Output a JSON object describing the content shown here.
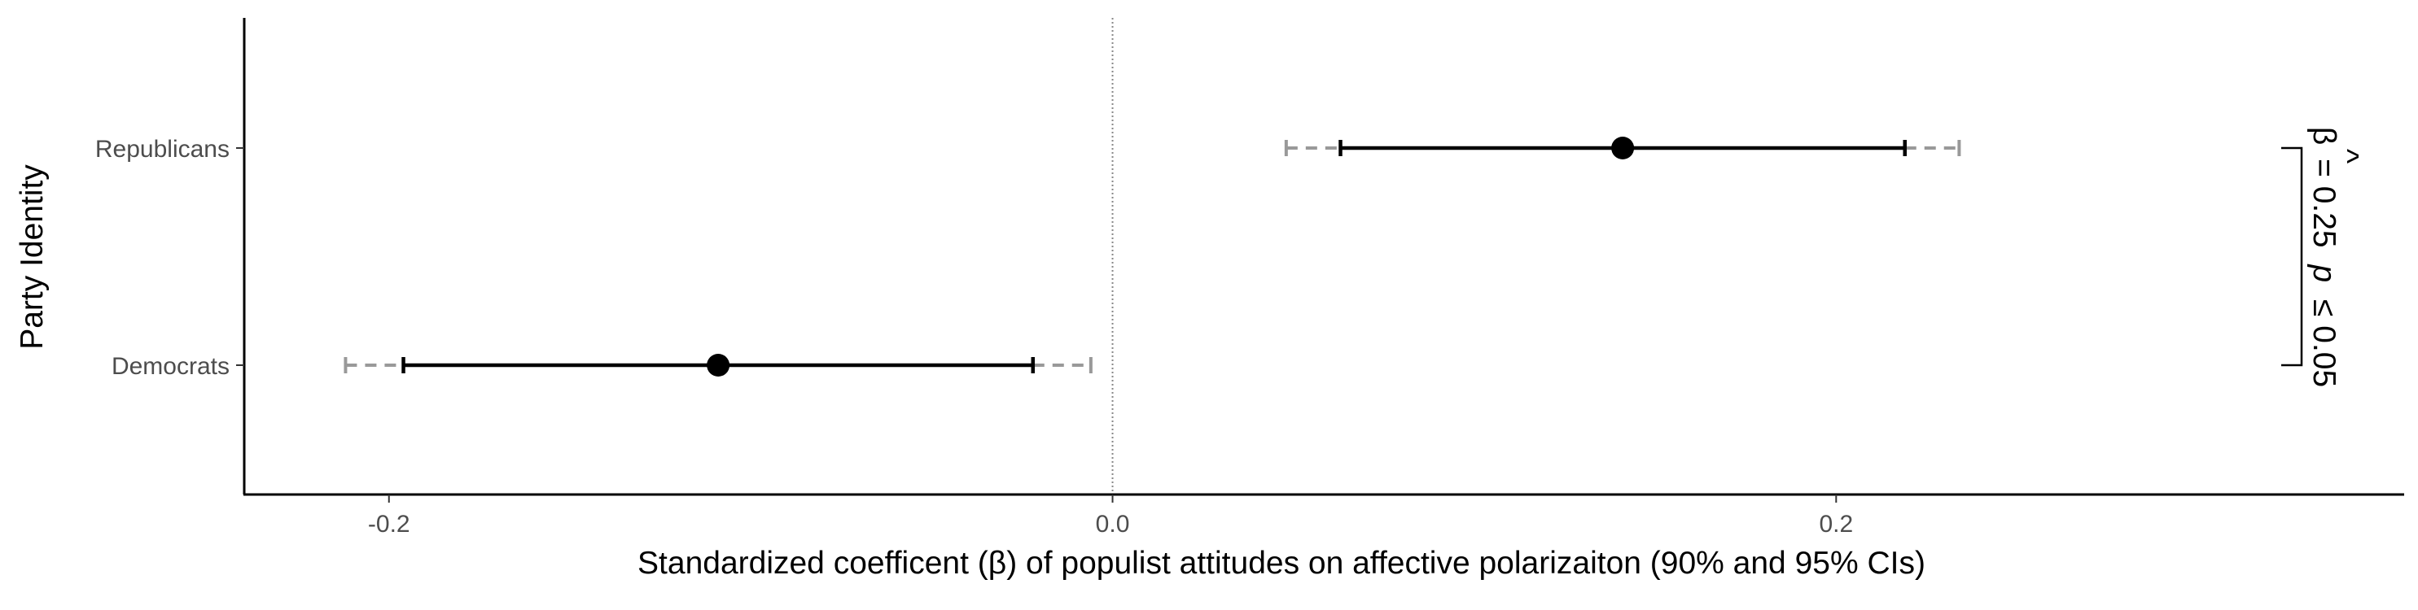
{
  "chart_data": {
    "type": "coefficient-plot",
    "xlabel": "Standardized coefficent (β) of populist attitudes on affective polarizaiton (90% and 95% CIs)",
    "ylabel": "Party Identity",
    "xlim": [
      -0.24,
      0.357
    ],
    "x_ticks": [
      -0.2,
      0.0,
      0.2
    ],
    "x_tick_labels": [
      "-0.2",
      "0.0",
      "0.2"
    ],
    "reference_line": 0.0,
    "categories": [
      "Republicans",
      "Democrats"
    ],
    "points": [
      {
        "label": "Republicans",
        "estimate": 0.141,
        "ci90": [
          0.063,
          0.219
        ],
        "ci95": [
          0.048,
          0.234
        ]
      },
      {
        "label": "Democrats",
        "estimate": -0.109,
        "ci90": [
          -0.196,
          -0.022
        ],
        "ci95": [
          -0.212,
          -0.006
        ]
      }
    ],
    "annotation": {
      "text": "β̂ = 0.25 p ≤ 0.05",
      "beta": "β",
      "hat": "^",
      "equals": "= 0.25",
      "p": "p",
      "rest": "≤ 0.05"
    },
    "colors": {
      "ci90": "#000000",
      "ci95": "#999999",
      "point": "#000000",
      "axis": "#000000",
      "refline": "#888888"
    }
  }
}
